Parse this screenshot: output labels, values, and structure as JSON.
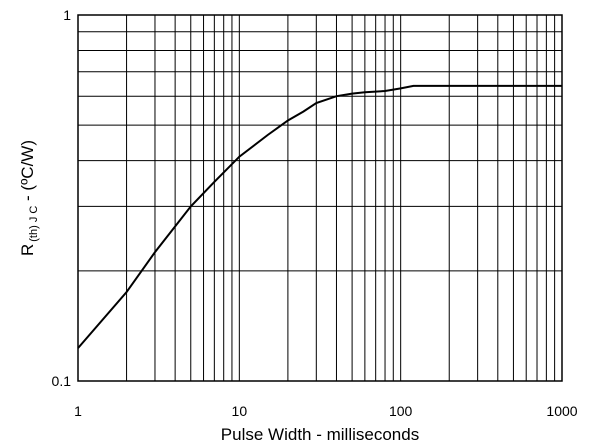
{
  "chart_data": {
    "type": "line",
    "xscale": "log",
    "yscale": "log",
    "xlim": [
      1,
      1000
    ],
    "ylim": [
      0.1,
      1
    ],
    "grid": true,
    "xlabel": "Pulse Width - milliseconds",
    "ylabel": {
      "main": "R",
      "subscript": "(th) J C",
      "suffix": " - (ºC/W)"
    },
    "x_tick_labels": [
      {
        "value": 1,
        "label": "1"
      },
      {
        "value": 10,
        "label": "10"
      },
      {
        "value": 100,
        "label": "100"
      },
      {
        "value": 1000,
        "label": "1000"
      }
    ],
    "y_tick_labels": [
      {
        "value": 1,
        "label": "1"
      },
      {
        "value": 0.1,
        "label": "0.1"
      }
    ],
    "series": [
      {
        "color": "#000000",
        "x": [
          1,
          2,
          3,
          5,
          7,
          10,
          15,
          20,
          25,
          30,
          40,
          50,
          60,
          80,
          100,
          120,
          200,
          500,
          1000
        ],
        "y": [
          0.123,
          0.175,
          0.225,
          0.3,
          0.35,
          0.41,
          0.47,
          0.515,
          0.545,
          0.575,
          0.6,
          0.61,
          0.615,
          0.62,
          0.63,
          0.64,
          0.64,
          0.64,
          0.64
        ]
      }
    ]
  }
}
